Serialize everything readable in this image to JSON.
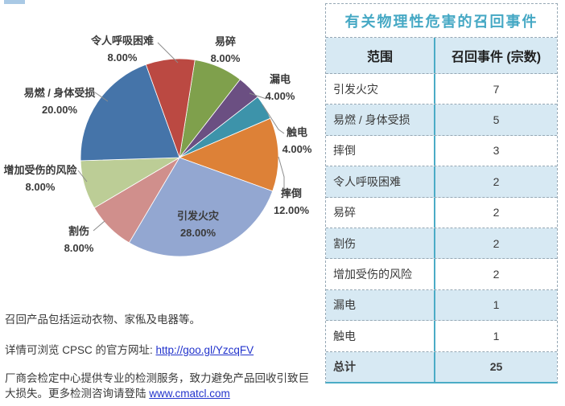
{
  "chart_data": {
    "type": "pie",
    "title": "",
    "total": 25,
    "start_angle_deg": 9,
    "direction": "clockwise",
    "legend_position": "none",
    "labels_style": "callout-with-percent",
    "slices": [
      {
        "label": "易碎",
        "count": 2,
        "pct": "8.00%",
        "color": "#7FA04C"
      },
      {
        "label": "漏电",
        "count": 1,
        "pct": "4.00%",
        "color": "#6B4F82"
      },
      {
        "label": "触电",
        "count": 1,
        "pct": "4.00%",
        "color": "#3D93AA"
      },
      {
        "label": "摔倒",
        "count": 3,
        "pct": "12.00%",
        "color": "#DD8137"
      },
      {
        "label": "引发火灾",
        "count": 7,
        "pct": "28.00%",
        "color": "#93A7D1"
      },
      {
        "label": "割伤",
        "count": 2,
        "pct": "8.00%",
        "color": "#D08F8C"
      },
      {
        "label": "增加受伤的风险",
        "count": 2,
        "pct": "8.00%",
        "color": "#BCCD96"
      },
      {
        "label": "易燃 / 身体受损",
        "count": 5,
        "pct": "20.00%",
        "color": "#4574A9"
      },
      {
        "label": "令人呼吸困难",
        "count": 2,
        "pct": "8.00%",
        "color": "#BB4942"
      }
    ]
  },
  "table": {
    "title": "有关物理性危害的召回事件",
    "columns": [
      "范围",
      "召回事件 (宗数)"
    ],
    "rows": [
      {
        "label": "引发火灾",
        "value": "7"
      },
      {
        "label": "易燃 / 身体受损",
        "value": "5"
      },
      {
        "label": "摔倒",
        "value": "3"
      },
      {
        "label": "令人呼吸困难",
        "value": "2"
      },
      {
        "label": "易碎",
        "value": "2"
      },
      {
        "label": "割伤",
        "value": "2"
      },
      {
        "label": "增加受伤的风险",
        "value": "2"
      },
      {
        "label": "漏电",
        "value": "1"
      },
      {
        "label": "触电",
        "value": "1"
      },
      {
        "label": "总计",
        "value": "25",
        "is_total": true
      }
    ],
    "accent_color": "#4BACC6",
    "alt_row_color": "#D7E9F3",
    "title_color": "#45A8C4",
    "border_color": "#96A8B5"
  },
  "notes": {
    "line1": "召回产品包括运动衣物、家俬及电器等。",
    "line2_prefix": "详情可浏览 CPSC 的官方网址: ",
    "line2_link": "http://goo.gl/YzcqFV",
    "line3_prefix": "厂商会检定中心提供专业的检测服务，致力避免产品回收引致巨大损失。更多检测咨询请登陆 ",
    "line3_link": "www.cmatcl.com",
    "link_color": "#2233CC"
  }
}
